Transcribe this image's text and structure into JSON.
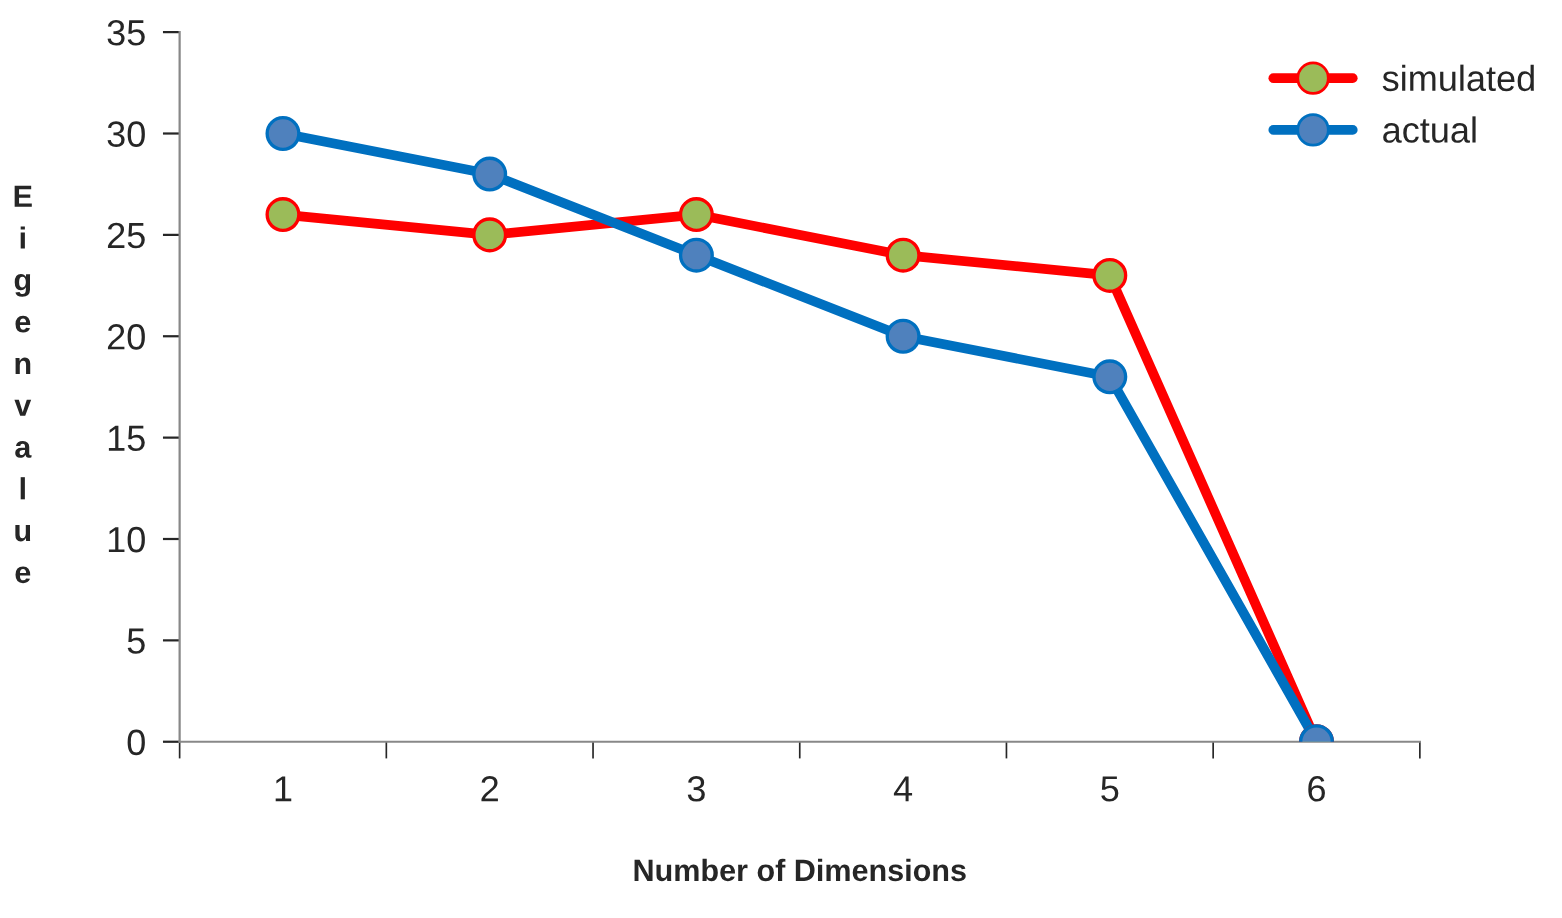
{
  "chart_data": {
    "type": "line",
    "xlabel": "Number of Dimensions",
    "ylabel": "Eigenvalue",
    "categories": [
      "1",
      "2",
      "3",
      "4",
      "5",
      "6"
    ],
    "series": [
      {
        "name": "simulated",
        "color": "#ff0000",
        "colors": [
          "#9bbb59",
          "#9bbb59",
          "#9bbb59",
          "#9bbb59",
          "#9bbb59",
          "#9bbb59"
        ],
        "values": [
          26,
          25,
          26,
          24,
          23,
          0
        ]
      },
      {
        "name": "actual",
        "color": "#0070c0",
        "colors": [
          "#4f81bd",
          "#4f81bd",
          "#4f81bd",
          "#4f81bd",
          "#4f81bd",
          "#4f81bd"
        ],
        "values": [
          30,
          28,
          24,
          20,
          18,
          0
        ]
      }
    ],
    "ylim": [
      0,
      35
    ],
    "yticks": [
      0,
      5,
      10,
      15,
      20,
      25,
      30,
      35
    ],
    "grid": false,
    "legend": "top right",
    "marker": "circle",
    "line_style": "solid"
  }
}
